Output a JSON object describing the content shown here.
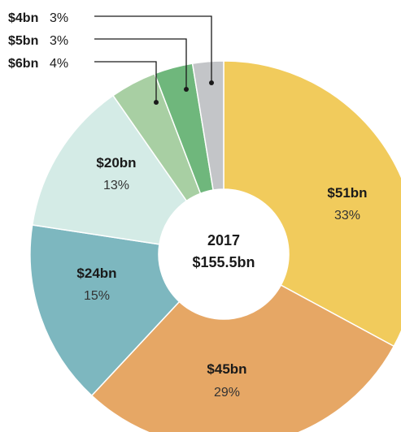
{
  "chart_data": {
    "type": "pie",
    "donut": true,
    "center_label": {
      "year": "2017",
      "total": "$155.5bn"
    },
    "slices": [
      {
        "value_label": "$51bn",
        "percent_label": "33%",
        "value": 51,
        "percent": 33,
        "color": "#f1cb5c"
      },
      {
        "value_label": "$45bn",
        "percent_label": "29%",
        "value": 45,
        "percent": 29,
        "color": "#e6a765"
      },
      {
        "value_label": "$24bn",
        "percent_label": "15%",
        "value": 24,
        "percent": 15,
        "color": "#7db7bf"
      },
      {
        "value_label": "$20bn",
        "percent_label": "13%",
        "value": 20,
        "percent": 13,
        "color": "#d4ebe6"
      },
      {
        "value_label": "$6bn",
        "percent_label": "4%",
        "value": 6,
        "percent": 4,
        "color": "#a8cfa3"
      },
      {
        "value_label": "$5bn",
        "percent_label": "3%",
        "value": 5,
        "percent": 3,
        "color": "#6fb77c"
      },
      {
        "value_label": "$4bn",
        "percent_label": "3%",
        "value": 4,
        "percent": 3,
        "color": "#c3c5c8"
      }
    ]
  }
}
